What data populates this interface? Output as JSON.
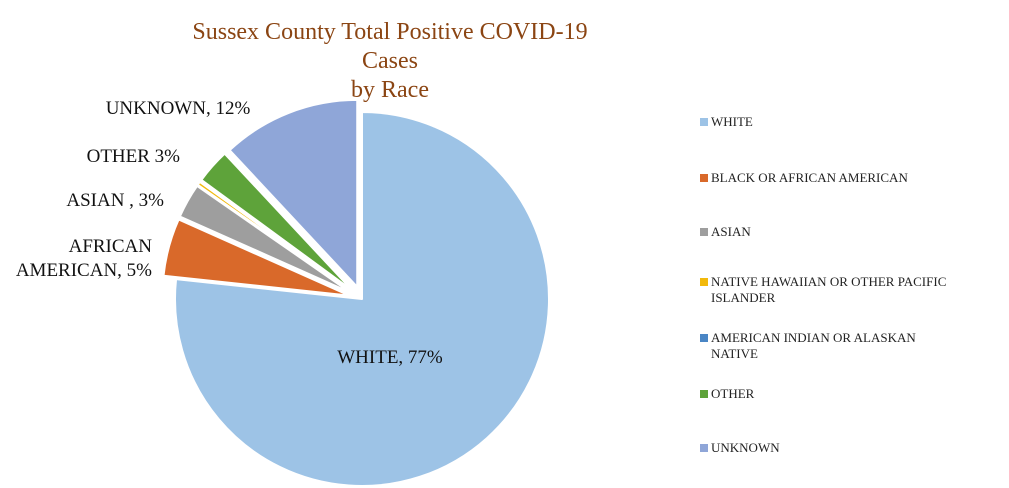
{
  "chart_data": {
    "type": "pie",
    "title": "Sussex County Total Positive COVID-19 Cases by Race",
    "title_lines": [
      "Sussex County Total Positive COVID-19 Cases",
      "by Race"
    ],
    "slices": [
      {
        "name": "WHITE",
        "value": 77,
        "color": "#9DC3E6",
        "label": "WHITE, 77%",
        "exploded": false
      },
      {
        "name": "BLACK OR AFRICAN AMERICAN",
        "value": 5,
        "color": "#D9692A",
        "label_lines": [
          "AFRICAN",
          "AMERICAN, 5%"
        ],
        "exploded": true
      },
      {
        "name": "ASIAN",
        "value": 3,
        "color": "#9E9E9E",
        "label": "ASIAN , 3%",
        "exploded": true
      },
      {
        "name": "NATIVE HAWAIIAN OR OTHER PACIFIC ISLANDER",
        "value": 0.3,
        "color": "#F2B90C",
        "label": "",
        "exploded": true
      },
      {
        "name": "AMERICAN INDIAN OR ALASKAN NATIVE",
        "value": 0.1,
        "color": "#4A86C5",
        "label": "",
        "exploded": true
      },
      {
        "name": "OTHER",
        "value": 3,
        "color": "#5EA33A",
        "label": "OTHER 3%",
        "exploded": true
      },
      {
        "name": "UNKNOWN",
        "value": 12,
        "color": "#8FA6D8",
        "label": "UNKNOWN, 12%",
        "exploded": true
      }
    ],
    "legend": {
      "position": "right",
      "items": [
        {
          "lines": [
            "WHITE"
          ],
          "color": "#9DC3E6"
        },
        {
          "lines": [
            "BLACK OR AFRICAN AMERICAN"
          ],
          "color": "#D9692A"
        },
        {
          "lines": [
            "ASIAN"
          ],
          "color": "#9E9E9E"
        },
        {
          "lines": [
            "NATIVE HAWAIIAN OR OTHER PACIFIC",
            "ISLANDER"
          ],
          "color": "#F2B90C"
        },
        {
          "lines": [
            "AMERICAN INDIAN OR ALASKAN",
            "NATIVE"
          ],
          "color": "#4A86C5"
        },
        {
          "lines": [
            "OTHER"
          ],
          "color": "#5EA33A"
        },
        {
          "lines": [
            "UNKNOWN"
          ],
          "color": "#8FA6D8"
        }
      ]
    }
  }
}
